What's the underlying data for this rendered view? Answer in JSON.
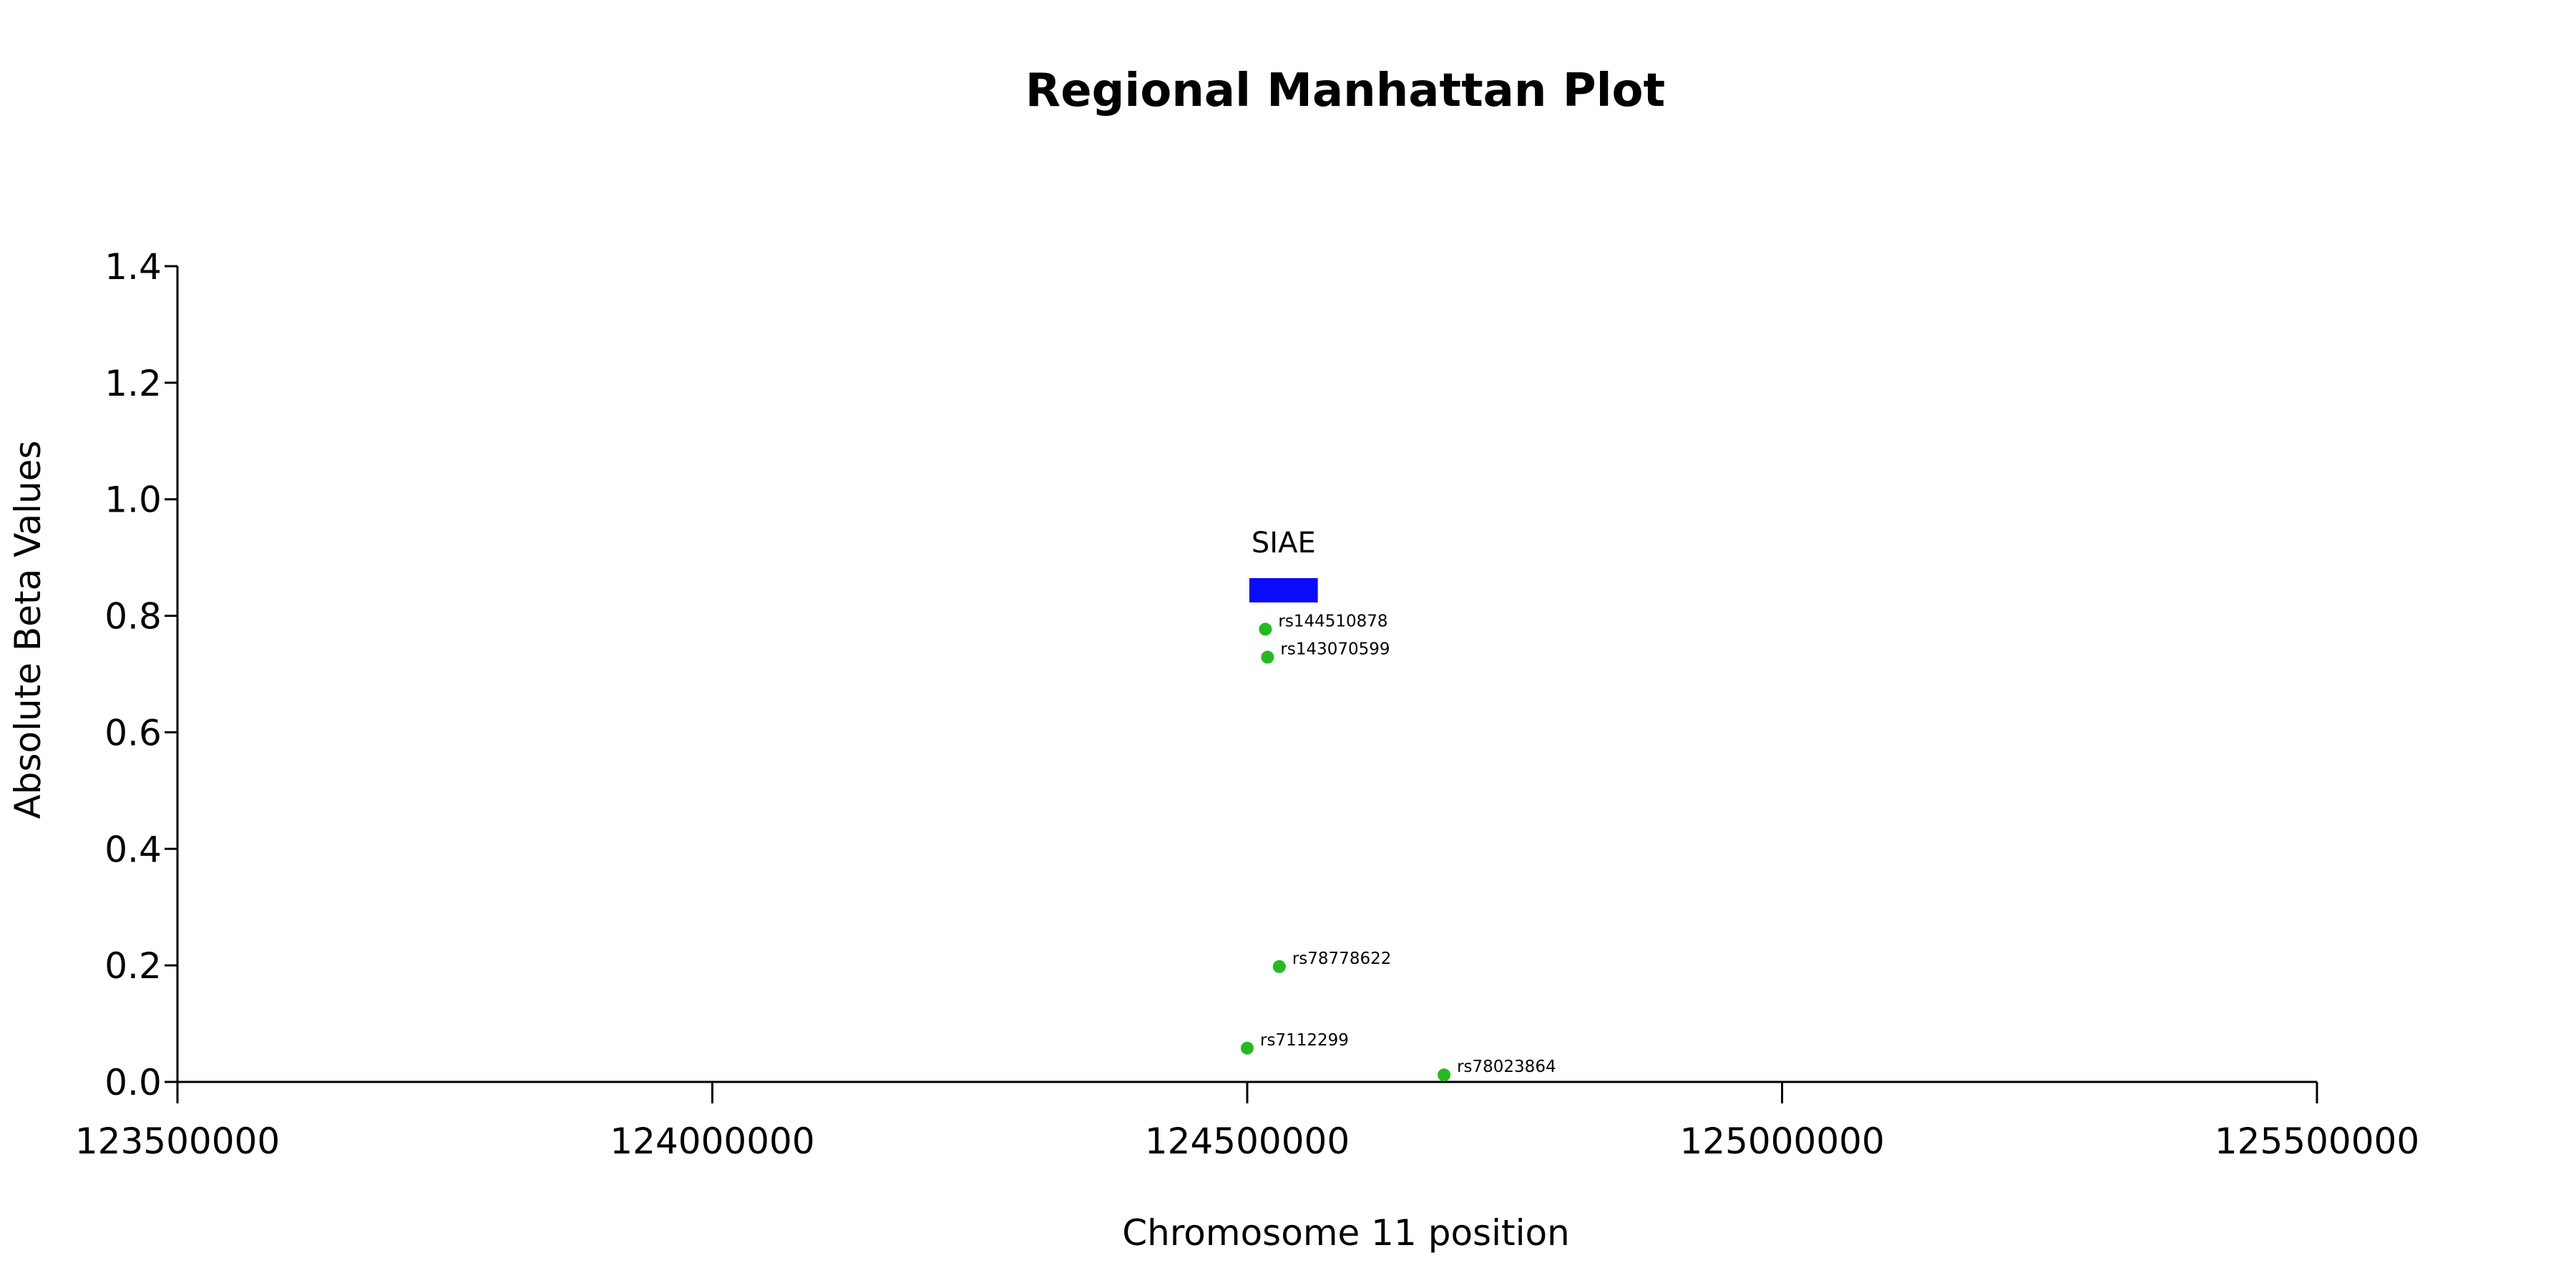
{
  "chart_data": {
    "type": "scatter",
    "title": "Regional Manhattan Plot",
    "xlabel": "Chromosome 11 position",
    "ylabel": "Absolute Beta Values",
    "xlim": [
      123500000,
      125500000
    ],
    "ylim": [
      0.0,
      1.4
    ],
    "x_ticks": [
      123500000,
      124000000,
      124500000,
      125000000,
      125500000
    ],
    "x_tick_labels": [
      "123500000",
      "124000000",
      "124500000",
      "125000000",
      "125500000"
    ],
    "y_ticks": [
      0.0,
      0.2,
      0.4,
      0.6,
      0.8,
      1.0,
      1.2,
      1.4
    ],
    "y_tick_labels": [
      "0.0",
      "0.2",
      "0.4",
      "0.6",
      "0.8",
      "1.0",
      "1.2",
      "1.4"
    ],
    "grid": false,
    "point_color": "#22bb22",
    "points": [
      {
        "label": "rs144510878",
        "x": 124517000,
        "y": 0.777
      },
      {
        "label": "rs143070599",
        "x": 124519000,
        "y": 0.729
      },
      {
        "label": "rs78778622",
        "x": 124530000,
        "y": 0.198
      },
      {
        "label": "rs7112299",
        "x": 124500000,
        "y": 0.058
      },
      {
        "label": "rs78023864",
        "x": 124684000,
        "y": 0.012
      }
    ],
    "genes": [
      {
        "name": "SIAE",
        "start": 124502000,
        "end": 124566000,
        "y": 0.845,
        "color": "#0a0aff"
      }
    ]
  }
}
